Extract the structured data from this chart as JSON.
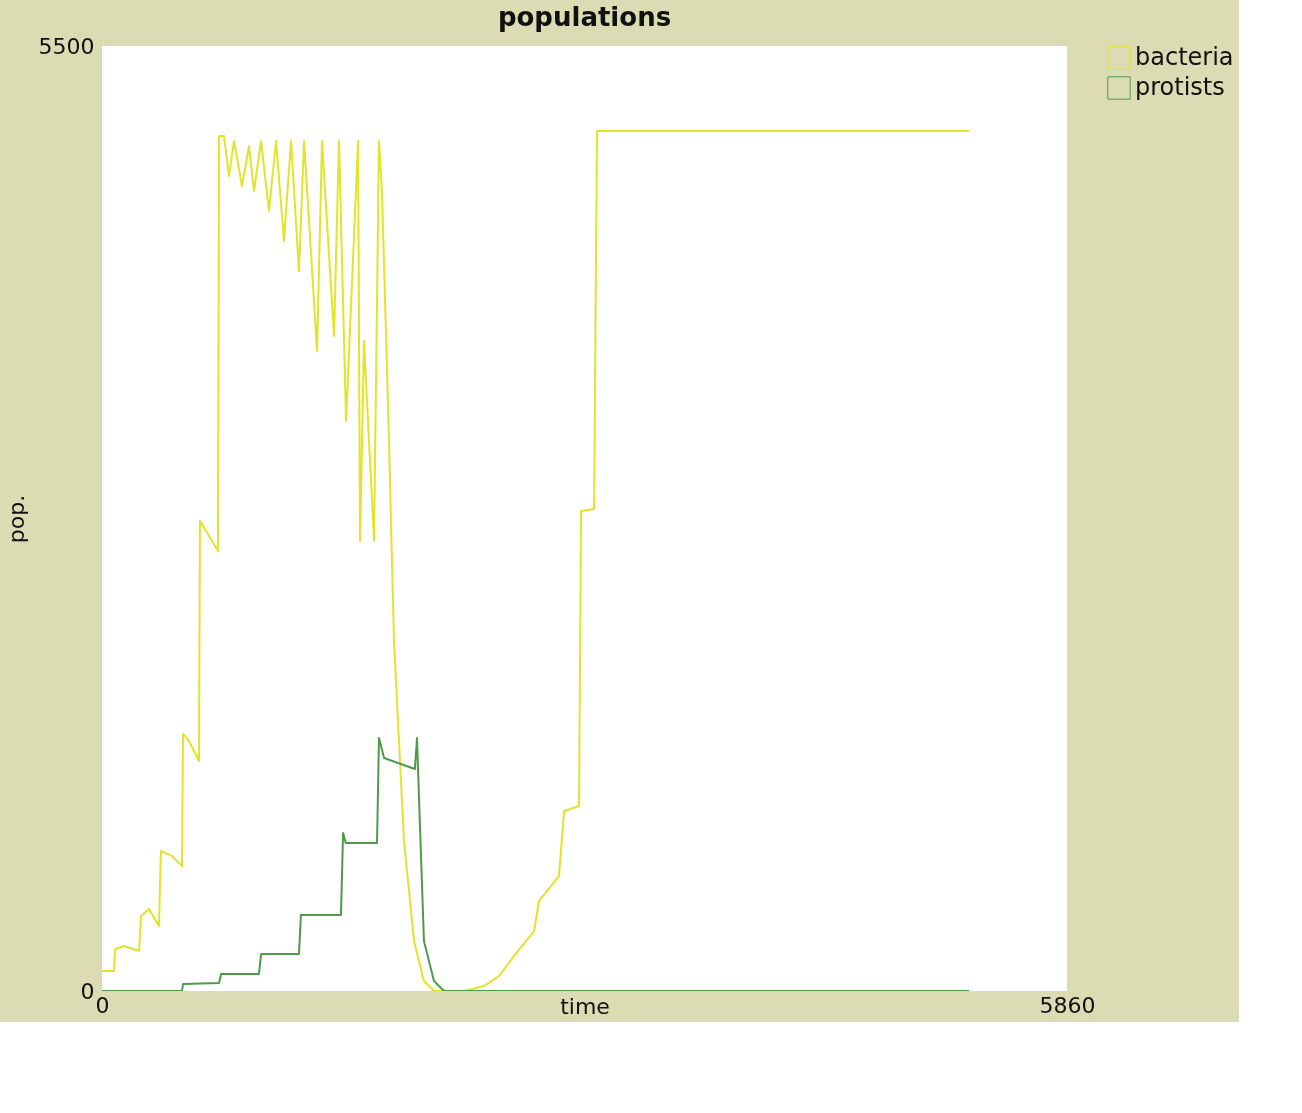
{
  "chart_data": {
    "type": "line",
    "title": "populations",
    "xlabel": "time",
    "ylabel": "pop.",
    "xlim": [
      0,
      5860
    ],
    "ylim": [
      0,
      5500
    ],
    "xticks": [
      0,
      5860
    ],
    "yticks": [
      0,
      5500
    ],
    "grid": false,
    "legend": "right",
    "marker": "none",
    "line_style": "solid",
    "series": [
      {
        "name": "bacteria",
        "color": "#e3e32a",
        "x": [
          0,
          73,
          79,
          134,
          225,
          237,
          285,
          346,
          358,
          425,
          486,
          492,
          528,
          589,
          595,
          632,
          704,
          711,
          741,
          771,
          802,
          850,
          893,
          923,
          966,
          1014,
          1057,
          1105,
          1148,
          1196,
          1227,
          1306,
          1336,
          1409,
          1439,
          1482,
          1555,
          1567,
          1591,
          1652,
          1682,
          1700,
          1743,
          1773,
          1834,
          1895,
          1955,
          2016,
          2107,
          2198,
          2320,
          2411,
          2502,
          2624,
          2654,
          2775,
          2806,
          2897,
          2909,
          2988,
          3006,
          5265
        ],
        "values": [
          116,
          116,
          244,
          262,
          233,
          437,
          477,
          378,
          815,
          786,
          728,
          1496,
          1455,
          1339,
          2735,
          2677,
          2561,
          4976,
          4976,
          4743,
          4947,
          4685,
          4918,
          4656,
          4947,
          4540,
          4947,
          4365,
          4947,
          4190,
          4947,
          3725,
          4947,
          3812,
          4947,
          3317,
          4947,
          2619,
          3783,
          2619,
          4947,
          4656,
          3201,
          2037,
          873,
          291,
          58,
          0,
          0,
          0,
          29,
          87,
          204,
          349,
          524,
          669,
          1048,
          1077,
          2794,
          2805,
          5005,
          5005
        ]
      },
      {
        "name": "protists",
        "color": "#4f9a4a",
        "x": [
          0,
          486,
          492,
          711,
          723,
          953,
          966,
          1196,
          1208,
          1451,
          1464,
          1480,
          1670,
          1682,
          1713,
          1900,
          1913,
          1919,
          1955,
          2016,
          2077,
          5265
        ],
        "values": [
          0,
          0,
          41,
          47,
          99,
          99,
          215,
          215,
          442,
          442,
          920,
          861,
          861,
          1472,
          1356,
          1292,
          1472,
          1292,
          291,
          58,
          0,
          0
        ]
      }
    ]
  }
}
